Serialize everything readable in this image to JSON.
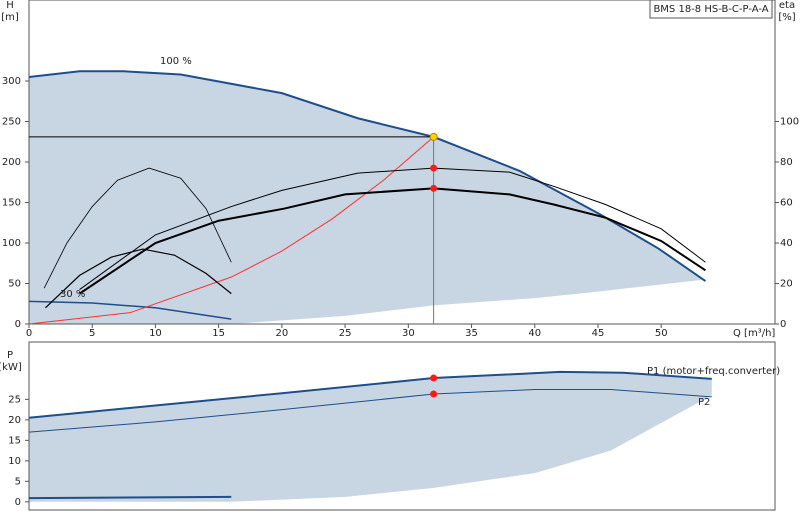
{
  "chart_data": [
    {
      "type": "line",
      "title": "BMS 18-8 HS-B-C-P-A-A",
      "xlabel": "Q [m³/h]",
      "ylabel": [
        "H",
        "[m]"
      ],
      "y2label": [
        "eta",
        "[%]"
      ],
      "xlim": [
        0,
        59
      ],
      "xticks": [
        0,
        5,
        10,
        15,
        20,
        25,
        30,
        35,
        40,
        45,
        50
      ],
      "ylim": [
        0,
        400
      ],
      "yticks": [
        0,
        50,
        100,
        150,
        200,
        250,
        300
      ],
      "y2lim": [
        0,
        160
      ],
      "y2ticks": [
        0,
        20,
        40,
        60,
        80,
        100
      ],
      "annotations": [
        {
          "text": "100 %"
        },
        {
          "text": "30 %"
        }
      ],
      "series": [
        {
          "color": "#1f4e8c",
          "width": 2,
          "x": [
            0,
            4,
            7.5,
            12,
            20,
            26,
            32,
            38.8,
            45.1,
            49.8,
            53.5
          ],
          "values": [
            305,
            312,
            312,
            308,
            285,
            254,
            231,
            189,
            136,
            93,
            53
          ]
        },
        {
          "fill": "#c8d5e3",
          "x": [
            53.5,
            45,
            40,
            32,
            25,
            16,
            0
          ],
          "values": [
            55,
            40,
            32,
            23,
            10,
            0,
            0
          ]
        },
        {
          "color": "#1f4e8c",
          "width": 1.5,
          "x": [
            0,
            5,
            10,
            16
          ],
          "values": [
            28,
            26,
            20,
            6
          ]
        },
        {
          "color": "#ff3030",
          "width": 1,
          "x": [
            0,
            8,
            16,
            20,
            24,
            28,
            32
          ],
          "values": [
            0,
            14,
            58,
            90,
            130,
            177,
            231
          ]
        },
        {
          "color": "#000000",
          "width": 1,
          "x": [
            0,
            32
          ],
          "values": [
            231,
            231
          ]
        },
        {
          "color": "#777777",
          "width": 1,
          "x": [
            32,
            32
          ],
          "values": [
            231,
            0
          ]
        },
        {
          "color": "#000000",
          "width": 2,
          "axis": "y2",
          "x": [
            4,
            10,
            15,
            20.2,
            25,
            32,
            38,
            41.5,
            45.6,
            50,
            53.5
          ],
          "values": [
            15,
            40,
            51,
            57,
            64,
            67,
            64,
            59,
            52.5,
            41,
            26.5
          ]
        },
        {
          "color": "#000000",
          "width": 1,
          "axis": "y2",
          "x": [
            4,
            10,
            16,
            20,
            26,
            32,
            38,
            41.5,
            45.6,
            50,
            53.5
          ],
          "values": [
            17,
            44,
            58,
            66,
            74.5,
            77,
            75,
            68,
            59,
            47,
            30.5
          ]
        },
        {
          "color": "#000000",
          "width": 0.8,
          "axis": "y2",
          "x": [
            1.2,
            3,
            5,
            7,
            9.5,
            12,
            14,
            16
          ],
          "values": [
            17.7,
            40,
            58,
            71,
            77,
            72,
            57,
            30.5
          ]
        },
        {
          "color": "#000000",
          "width": 1.2,
          "axis": "y2",
          "x": [
            1.3,
            4,
            6.5,
            9,
            11.5,
            14,
            16
          ],
          "values": [
            8,
            24,
            33,
            37,
            34,
            25,
            15
          ]
        }
      ],
      "markers": [
        {
          "x": 32,
          "y": 231,
          "color": "#ffd700"
        },
        {
          "x": 32,
          "y": 77,
          "axis": "y2",
          "color": "#ff1a1a"
        },
        {
          "x": 32,
          "y": 67,
          "axis": "y2",
          "color": "#ff1a1a"
        }
      ]
    },
    {
      "type": "line",
      "ylabel": [
        "P",
        "[kW]"
      ],
      "xlim": [
        0,
        59
      ],
      "ylim": [
        -2,
        39
      ],
      "yticks": [
        0,
        5,
        10,
        15,
        20,
        25
      ],
      "annotations": [
        {
          "text": "P1 (motor+freq.converter)"
        },
        {
          "text": "P2"
        }
      ],
      "series": [
        {
          "color": "#1f4e8c",
          "width": 2,
          "x": [
            0,
            5,
            10,
            20,
            32,
            42,
            47,
            54
          ],
          "values": [
            20.5,
            22,
            23.5,
            26.5,
            30.2,
            31.7,
            31.5,
            30
          ]
        },
        {
          "fill": "#c8d5e3",
          "x": [
            54,
            46,
            40,
            32,
            25,
            16,
            0
          ],
          "values": [
            26,
            12.5,
            7,
            3.4,
            1.2,
            0,
            0
          ]
        },
        {
          "color": "#1f4e8c",
          "width": 1,
          "x": [
            0,
            10,
            20,
            32,
            40,
            46,
            54
          ],
          "values": [
            17,
            19.5,
            22.5,
            26.3,
            27.4,
            27.4,
            25.6
          ]
        },
        {
          "color": "#1f4e8c",
          "width": 2,
          "x": [
            0,
            16
          ],
          "values": [
            0.9,
            1.2
          ]
        }
      ],
      "markers": [
        {
          "x": 32,
          "y": 30.2,
          "color": "#ff1a1a"
        },
        {
          "x": 32,
          "y": 26.3,
          "color": "#ff1a1a"
        }
      ]
    }
  ]
}
